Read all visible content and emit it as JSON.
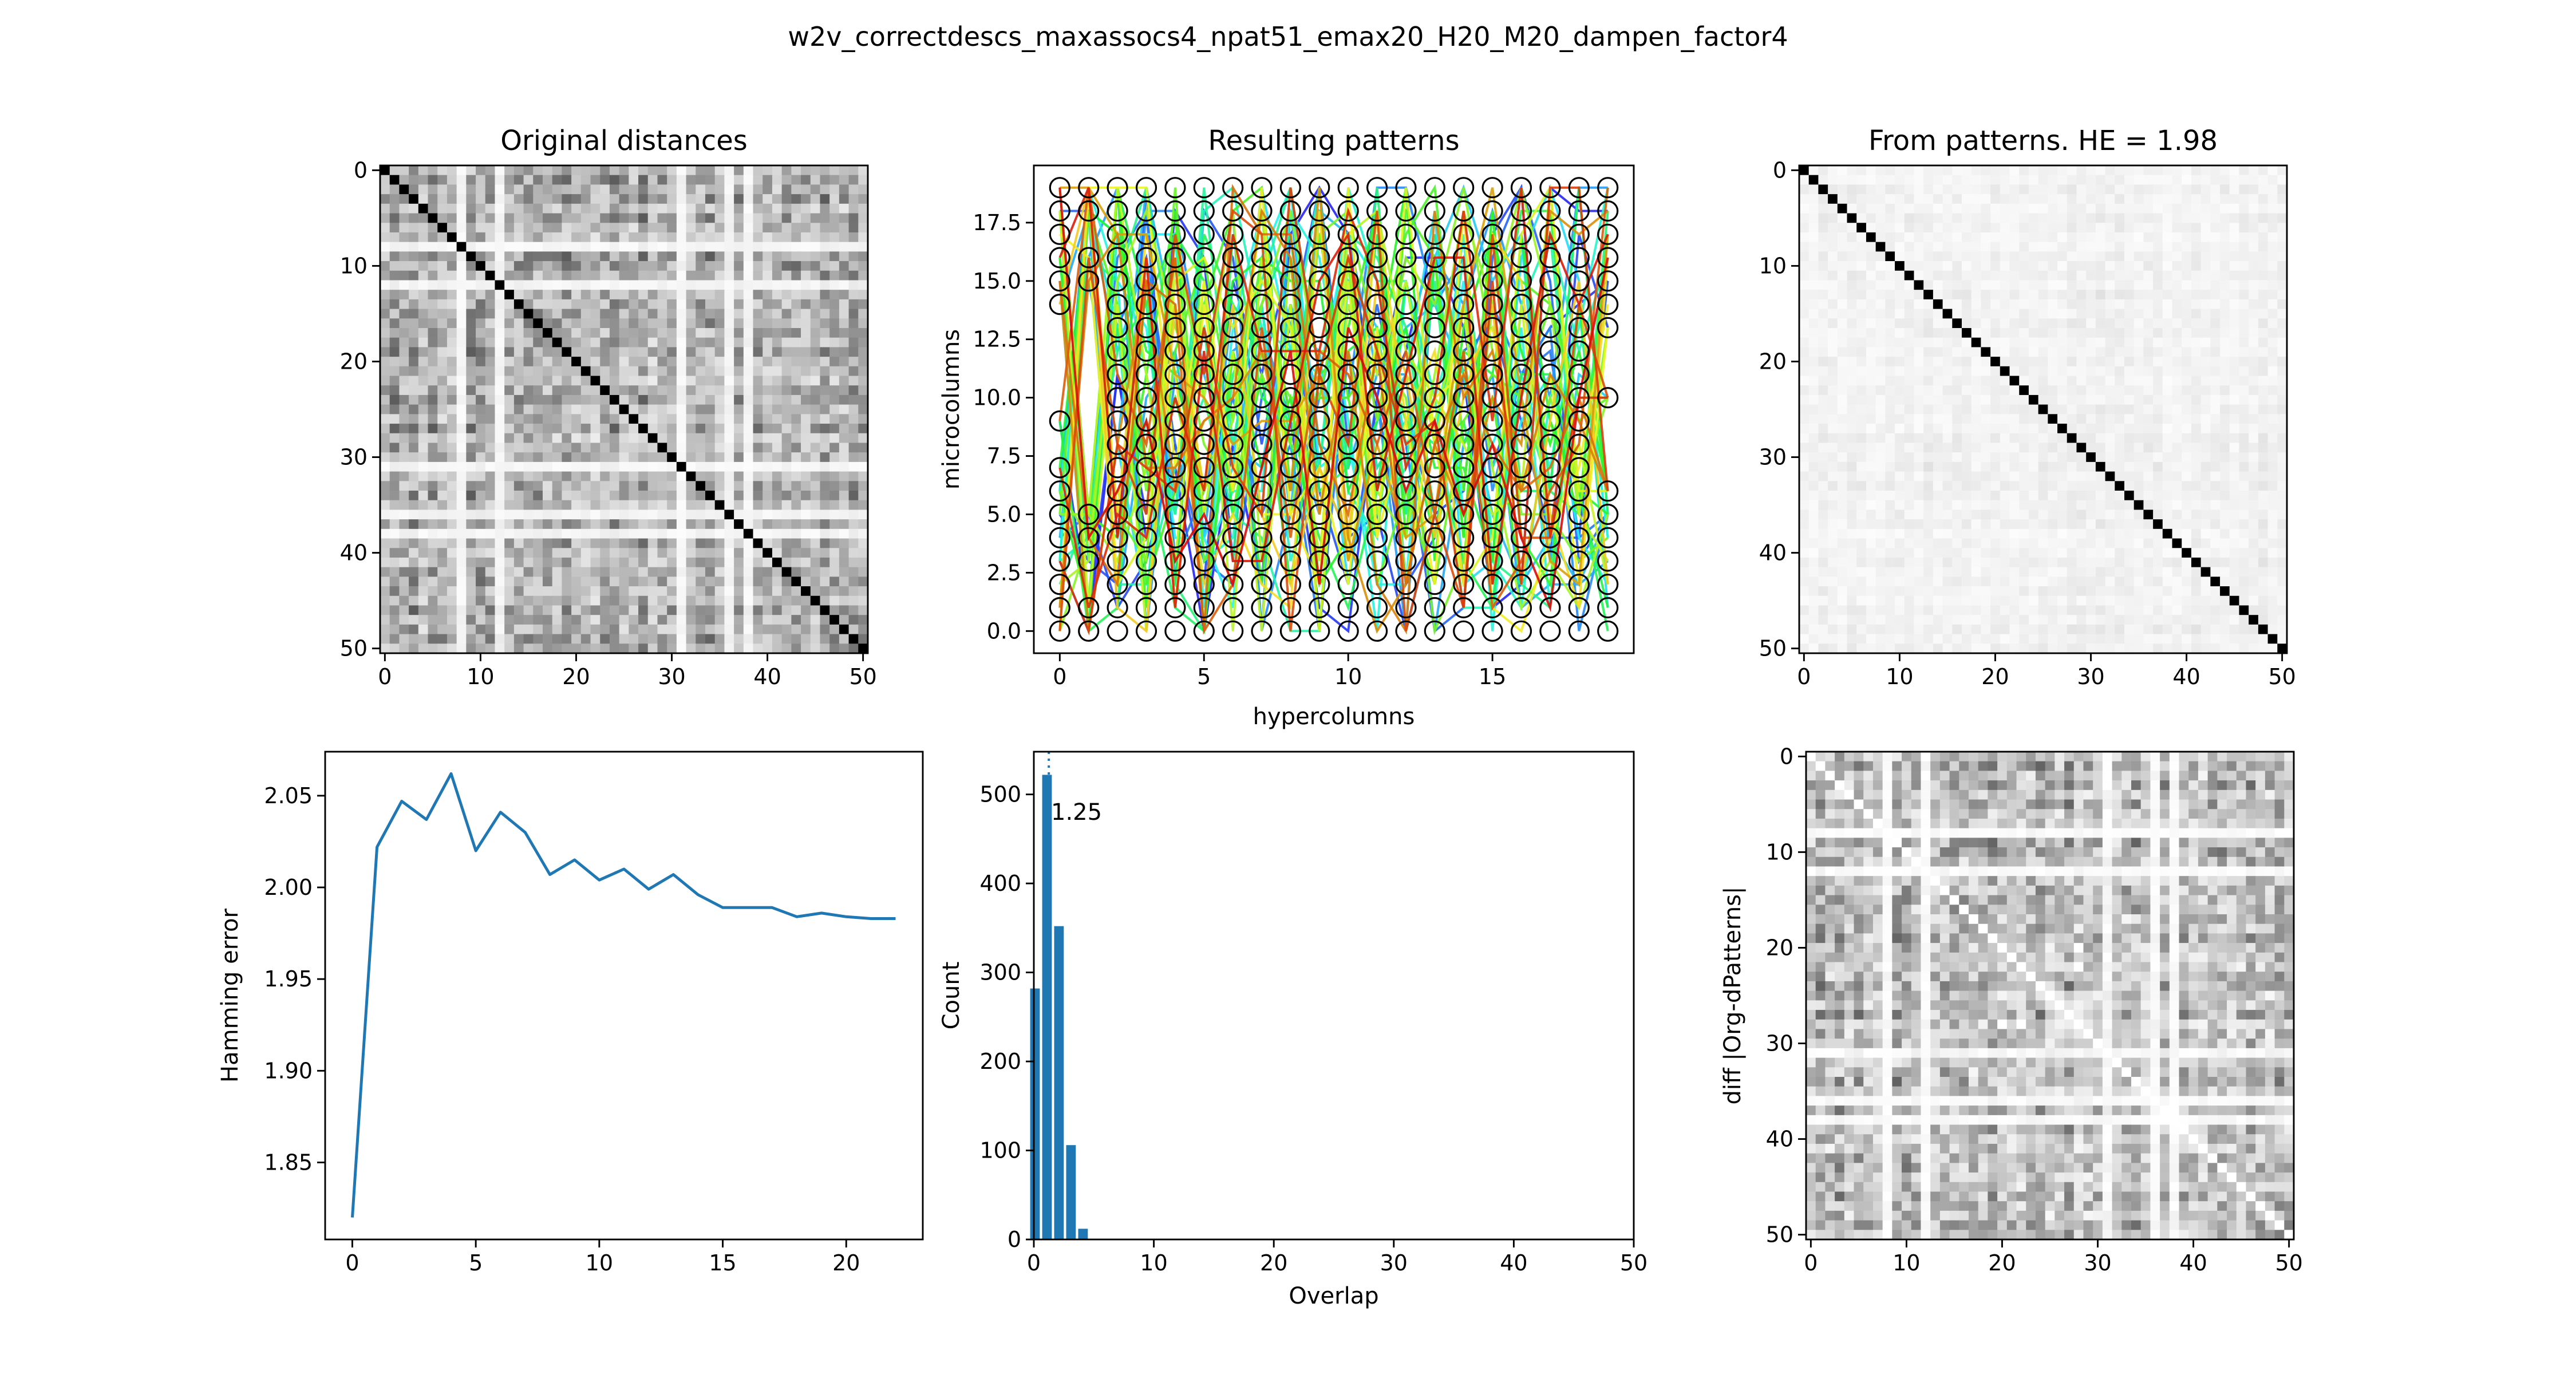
{
  "suptitle": "w2v_correctdescs_maxassocs4_npat51_emax20_H20_M20_dampen_factor4",
  "panels": {
    "original": {
      "title": "Original distances"
    },
    "patterns": {
      "title": "Resulting patterns",
      "xlabel": "hypercolumns",
      "ylabel": "microcolumns"
    },
    "from_patterns": {
      "title": "From patterns. HE = 1.98"
    },
    "hamming": {
      "xlabel": "",
      "ylabel": "Hamming error"
    },
    "overlap": {
      "xlabel": "Overlap",
      "ylabel": "Count",
      "annotation": "1.25"
    },
    "diff": {
      "ylabel": "diff |Org-dPatterns|"
    }
  },
  "colors": {
    "line": "#1f77b4",
    "bar": "#1f77b4",
    "text": "#000000"
  },
  "chart_data": [
    {
      "id": "original",
      "type": "heatmap",
      "title": "Original distances",
      "size": 51,
      "colormap": "gray_r",
      "xticks": [
        0,
        10,
        20,
        30,
        40,
        50
      ],
      "yticks": [
        0,
        10,
        20,
        30,
        40,
        50
      ],
      "diagonal": 1.0,
      "offdiag_range": [
        0,
        0.7
      ]
    },
    {
      "id": "patterns",
      "type": "scatter",
      "title": "Resulting patterns",
      "xlabel": "hypercolumns",
      "ylabel": "microcolumns",
      "xlim": [
        -0.9,
        19.9
      ],
      "ylim": [
        -0.95,
        19.95
      ],
      "xticks": [
        0,
        5,
        10,
        15
      ],
      "yticks": [
        0.0,
        2.5,
        5.0,
        7.5,
        10.0,
        12.5,
        15.0,
        17.5
      ],
      "n_patterns": 51,
      "active_units": [
        [
          0,
          1,
          2,
          3,
          4,
          5,
          6,
          7,
          9,
          14,
          15,
          16,
          17,
          18,
          19
        ],
        [
          0,
          1,
          3,
          4,
          5,
          15,
          16,
          18,
          19
        ],
        [
          0,
          1,
          2,
          3,
          4,
          5,
          6,
          7,
          8,
          9,
          10,
          11,
          12,
          13,
          14,
          15,
          16,
          17,
          18,
          19
        ],
        [
          0,
          1,
          2,
          3,
          4,
          5,
          6,
          7,
          8,
          9,
          10,
          11,
          12,
          13,
          14,
          15,
          16,
          17,
          18,
          19
        ],
        [
          0,
          1,
          2,
          3,
          4,
          5,
          6,
          7,
          8,
          9,
          10,
          11,
          12,
          13,
          14,
          15,
          16,
          17,
          18,
          19
        ],
        [
          0,
          1,
          2,
          3,
          4,
          5,
          6,
          7,
          8,
          9,
          10,
          11,
          12,
          13,
          14,
          15,
          16,
          17,
          18,
          19
        ],
        [
          0,
          1,
          2,
          3,
          4,
          5,
          6,
          7,
          8,
          9,
          10,
          11,
          12,
          13,
          14,
          15,
          16,
          17,
          18,
          19
        ],
        [
          0,
          1,
          2,
          3,
          4,
          5,
          6,
          7,
          8,
          9,
          10,
          11,
          12,
          13,
          14,
          15,
          16,
          17,
          18,
          19
        ],
        [
          0,
          1,
          2,
          3,
          4,
          5,
          6,
          7,
          8,
          9,
          10,
          11,
          12,
          13,
          14,
          15,
          16,
          17,
          18,
          19
        ],
        [
          0,
          1,
          2,
          3,
          4,
          5,
          6,
          7,
          8,
          9,
          10,
          11,
          12,
          13,
          14,
          15,
          16,
          17,
          18,
          19
        ],
        [
          0,
          1,
          2,
          3,
          4,
          5,
          6,
          7,
          8,
          9,
          10,
          11,
          12,
          13,
          14,
          15,
          16,
          17,
          18,
          19
        ],
        [
          0,
          1,
          2,
          3,
          4,
          5,
          6,
          7,
          8,
          9,
          10,
          11,
          12,
          13,
          14,
          15,
          16,
          17,
          18,
          19
        ],
        [
          0,
          1,
          2,
          3,
          4,
          5,
          6,
          7,
          8,
          9,
          10,
          11,
          12,
          13,
          14,
          15,
          16,
          17,
          18,
          19
        ],
        [
          0,
          1,
          2,
          3,
          4,
          5,
          6,
          7,
          8,
          9,
          10,
          11,
          12,
          13,
          14,
          15,
          16,
          17,
          18,
          19
        ],
        [
          0,
          1,
          2,
          3,
          4,
          5,
          6,
          7,
          8,
          9,
          10,
          11,
          12,
          13,
          14,
          15,
          16,
          17,
          18,
          19
        ],
        [
          0,
          1,
          2,
          3,
          4,
          5,
          6,
          7,
          8,
          9,
          10,
          11,
          12,
          13,
          14,
          15,
          16,
          17,
          18,
          19
        ],
        [
          0,
          1,
          2,
          3,
          4,
          5,
          6,
          7,
          8,
          9,
          10,
          11,
          12,
          13,
          14,
          15,
          16,
          17,
          18,
          19
        ],
        [
          0,
          1,
          2,
          3,
          4,
          5,
          6,
          7,
          8,
          9,
          10,
          11,
          12,
          13,
          14,
          15,
          16,
          17,
          18,
          19
        ],
        [
          0,
          1,
          2,
          3,
          4,
          5,
          6,
          7,
          8,
          9,
          10,
          11,
          12,
          13,
          14,
          15,
          16,
          17,
          18,
          19
        ],
        [
          0,
          1,
          2,
          3,
          4,
          5,
          6,
          10,
          13,
          14,
          15,
          16,
          17,
          18,
          19
        ]
      ]
    },
    {
      "id": "from_patterns",
      "type": "heatmap",
      "title": "From patterns. HE = 1.98",
      "size": 51,
      "colormap": "gray_r",
      "xticks": [
        0,
        10,
        20,
        30,
        40,
        50
      ],
      "yticks": [
        0,
        10,
        20,
        30,
        40,
        50
      ],
      "diagonal": 1.0,
      "offdiag_range": [
        0,
        0.12
      ]
    },
    {
      "id": "hamming",
      "type": "line",
      "xlabel": "",
      "ylabel": "Hamming error",
      "x": [
        0,
        1,
        2,
        3,
        4,
        5,
        6,
        7,
        8,
        9,
        10,
        11,
        12,
        13,
        14,
        15,
        16,
        17,
        18,
        19,
        20,
        21,
        22
      ],
      "y": [
        1.82,
        2.022,
        2.047,
        2.037,
        2.062,
        2.02,
        2.041,
        2.03,
        2.007,
        2.015,
        2.004,
        2.01,
        1.999,
        2.007,
        1.996,
        1.989,
        1.989,
        1.989,
        1.984,
        1.986,
        1.984,
        1.983,
        1.983
      ],
      "xlim": [
        -1.1,
        23.1
      ],
      "ylim": [
        1.808,
        2.074
      ],
      "xticks": [
        0,
        5,
        10,
        15,
        20
      ],
      "yticks": [
        1.85,
        1.9,
        1.95,
        2.0,
        2.05
      ]
    },
    {
      "id": "overlap",
      "type": "bar",
      "xlabel": "Overlap",
      "ylabel": "Count",
      "categories": [
        0,
        1,
        2,
        3,
        4
      ],
      "values": [
        282,
        522,
        352,
        106,
        12
      ],
      "xlim": [
        0,
        50
      ],
      "ylim": [
        0,
        548
      ],
      "xticks": [
        0,
        10,
        20,
        30,
        40,
        50
      ],
      "yticks": [
        0,
        100,
        200,
        300,
        400,
        500
      ],
      "mean": 1.25,
      "annotation": "1.25"
    },
    {
      "id": "diff",
      "type": "heatmap",
      "ylabel": "diff |Org-dPatterns|",
      "size": 51,
      "colormap": "gray_r",
      "xticks": [
        0,
        10,
        20,
        30,
        40,
        50
      ],
      "yticks": [
        0,
        10,
        20,
        30,
        40,
        50
      ],
      "diagonal": 0.0,
      "offdiag_range": [
        0,
        0.7
      ]
    }
  ]
}
